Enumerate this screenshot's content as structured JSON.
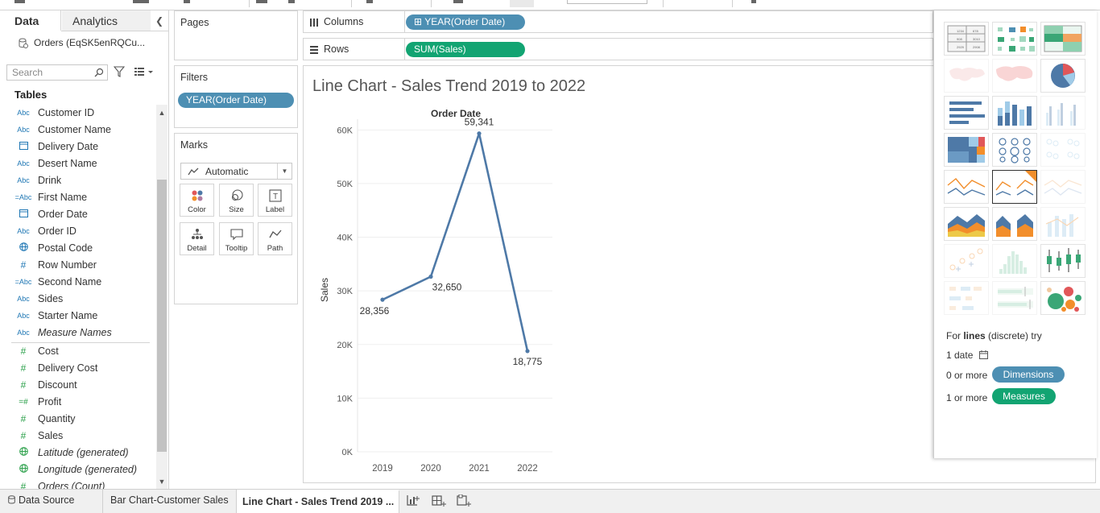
{
  "data_pane": {
    "tabs": [
      {
        "label": "Data"
      },
      {
        "label": "Analytics"
      }
    ],
    "datasource": "Orders (EqSK5enRQCu...",
    "search_placeholder": "Search",
    "tables_title": "Tables",
    "dimensions": [
      {
        "type": "Abc",
        "name": "Customer ID"
      },
      {
        "type": "Abc",
        "name": "Customer Name"
      },
      {
        "type": "date",
        "name": "Delivery Date"
      },
      {
        "type": "Abc",
        "name": "Desert Name"
      },
      {
        "type": "Abc",
        "name": "Drink"
      },
      {
        "type": "=Abc",
        "name": "First Name"
      },
      {
        "type": "date",
        "name": "Order Date"
      },
      {
        "type": "Abc",
        "name": "Order ID"
      },
      {
        "type": "geo",
        "name": "Postal Code"
      },
      {
        "type": "#",
        "name": "Row Number"
      },
      {
        "type": "=Abc",
        "name": "Second Name"
      },
      {
        "type": "Abc",
        "name": "Sides"
      },
      {
        "type": "Abc",
        "name": "Starter Name"
      },
      {
        "type": "Abc",
        "name": "Measure Names",
        "italic": true
      }
    ],
    "measures": [
      {
        "type": "#",
        "name": "Cost"
      },
      {
        "type": "#",
        "name": "Delivery Cost"
      },
      {
        "type": "#",
        "name": "Discount"
      },
      {
        "type": "=#",
        "name": "Profit"
      },
      {
        "type": "#",
        "name": "Quantity"
      },
      {
        "type": "#",
        "name": "Sales"
      },
      {
        "type": "geo",
        "name": "Latitude (generated)",
        "italic": true
      },
      {
        "type": "geo",
        "name": "Longitude (generated)",
        "italic": true
      },
      {
        "type": "#",
        "name": "Orders (Count)",
        "italic": true
      }
    ]
  },
  "pages": {
    "title": "Pages"
  },
  "filters": {
    "title": "Filters",
    "pills": [
      "YEAR(Order Date)"
    ]
  },
  "marks": {
    "title": "Marks",
    "mark_type": "Automatic",
    "buttons": [
      {
        "label": "Color",
        "icon": "color-icon"
      },
      {
        "label": "Size",
        "icon": "size-icon"
      },
      {
        "label": "Label",
        "icon": "label-icon"
      },
      {
        "label": "Detail",
        "icon": "detail-icon"
      },
      {
        "label": "Tooltip",
        "icon": "tooltip-icon"
      },
      {
        "label": "Path",
        "icon": "path-icon"
      }
    ]
  },
  "columns_shelf": {
    "label": "Columns",
    "pill": "YEAR(Order Date)",
    "pill_prefix": "⊞"
  },
  "rows_shelf": {
    "label": "Rows",
    "pill": "SUM(Sales)"
  },
  "sheet": {
    "title": "Line Chart - Sales Trend 2019 to 2022"
  },
  "chart_data": {
    "type": "line",
    "title": "Line Chart - Sales Trend 2019 to 2022",
    "xlabel": "Order Date",
    "ylabel": "Sales",
    "categories": [
      "2019",
      "2020",
      "2021",
      "2022"
    ],
    "series": [
      {
        "values": [
          28356,
          32650,
          59341,
          18775
        ]
      }
    ],
    "data_labels": [
      "28,356",
      "32,650",
      "59,341",
      "18,775"
    ],
    "yticks": [
      0,
      10000,
      20000,
      30000,
      40000,
      50000,
      60000
    ],
    "ytick_labels": [
      "0K",
      "10K",
      "20K",
      "30K",
      "40K",
      "50K",
      "60K"
    ],
    "ylim": [
      0,
      62000
    ],
    "grid": true,
    "line_color": "#4e79a7"
  },
  "show_me": {
    "hint_prefix": "For ",
    "hint_bold": "lines",
    "hint_suffix": " (discrete) try",
    "requirements": [
      {
        "text": "1 date"
      },
      {
        "text": "0 or more",
        "pill": "Dimensions",
        "color": "#4d8fb3"
      },
      {
        "text": "1 or more",
        "pill": "Measures",
        "color": "#12a472"
      }
    ],
    "chart_types": [
      "text-table",
      "heat-map",
      "highlight-table",
      "symbol-map",
      "filled-map",
      "pie-chart",
      "horizontal-bars",
      "stacked-bars",
      "side-by-side-bars",
      "treemap",
      "circle-views",
      "side-by-side-circles",
      "continuous-lines",
      "discrete-lines",
      "dual-lines",
      "area-continuous",
      "area-discrete",
      "dual-combination",
      "scatter-plot",
      "histogram",
      "box-and-whisker",
      "gantt-chart",
      "bullet-graph",
      "packed-bubbles"
    ]
  },
  "bottom_tabs": {
    "data_source": "Data Source",
    "sheets": [
      "Bar Chart-Customer Sales",
      "Line Chart - Sales Trend 2019 ..."
    ]
  }
}
